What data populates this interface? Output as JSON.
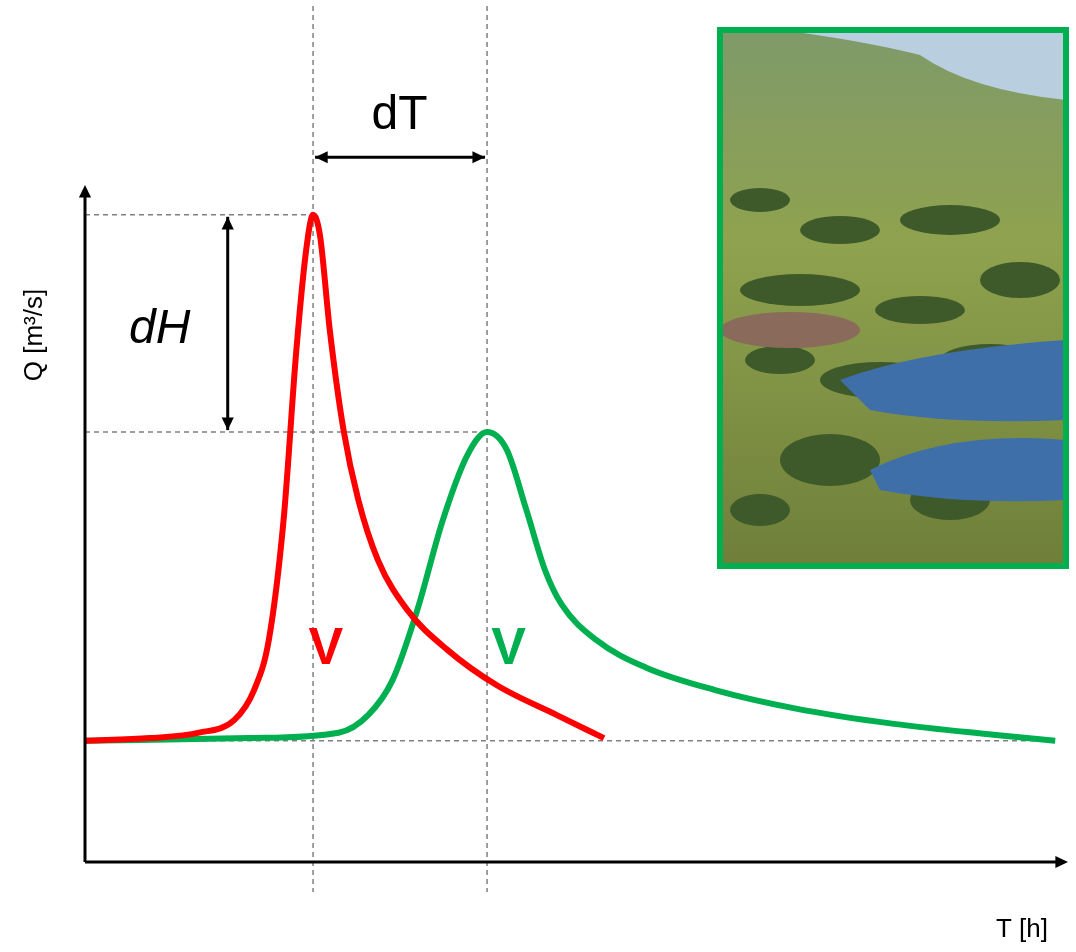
{
  "chart_data": {
    "type": "line",
    "x_label": "T [h]",
    "y_label": "Q [m³/s]",
    "xlim": [
      0,
      100
    ],
    "ylim": [
      0,
      100
    ],
    "tick_labels": false,
    "grid": false,
    "series": [
      {
        "color": "#ff0000",
        "x": [
          0,
          6.6,
          11.6,
          15.2,
          17.2,
          18.7,
          20.2,
          21.5,
          22.5,
          23.2,
          23.9,
          24.9,
          26.3,
          27.8,
          29.8,
          32.8,
          36.9,
          41.9,
          48.0,
          52.8
        ],
        "values": [
          17.9,
          18.3,
          19.1,
          21.0,
          25.4,
          32.8,
          50.5,
          75.6,
          90.4,
          95.6,
          92.6,
          78.6,
          63.8,
          53.5,
          44.6,
          37.2,
          31.3,
          26.1,
          21.7,
          18.3
        ]
      },
      {
        "color": "#00b050",
        "x": [
          0,
          16.7,
          25.8,
          28.8,
          31.3,
          33.8,
          36.4,
          38.9,
          40.9,
          42.9,
          44.9,
          46.8,
          48.5,
          52.0,
          57.1,
          64.1,
          72.2,
          82.3,
          92.4,
          98.7
        ],
        "values": [
          17.9,
          18.3,
          19.1,
          21.7,
          26.9,
          37.2,
          50.5,
          60.1,
          63.5,
          60.9,
          52.0,
          43.1,
          38.0,
          32.8,
          28.7,
          25.4,
          22.7,
          20.4,
          18.8,
          17.9
        ]
      }
    ],
    "annotations": [
      {
        "text": "dH",
        "x": 7.6,
        "y": 78.6
      },
      {
        "text": "dT",
        "x": 32.0,
        "y": 110.3
      },
      {
        "text": "V",
        "x": 24.5,
        "y": 31.3,
        "color": "#ff0000"
      },
      {
        "text": "V",
        "x": 43.1,
        "y": 31.3,
        "color": "#00b050"
      }
    ]
  }
}
